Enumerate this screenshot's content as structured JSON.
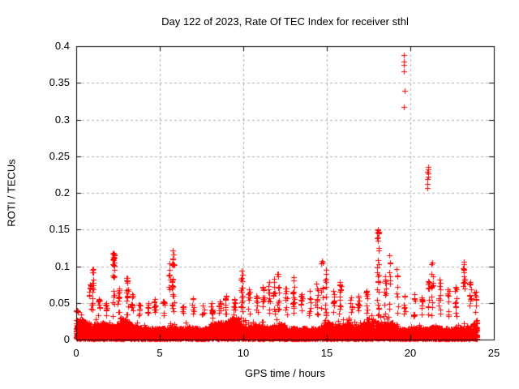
{
  "chart": {
    "title": "Day 122 of 2023, Rate Of TEC Index for receiver sthl",
    "xlabel": "GPS time / hours",
    "ylabel": "ROTI / TECUs"
  },
  "colors": {
    "marker": "#ff0000",
    "grid": "#b0b0b0",
    "axis": "#000000",
    "background": "#ffffff",
    "text": "#000000"
  },
  "chart_data": {
    "type": "scatter",
    "title": "Day 122 of 2023, Rate Of TEC Index for receiver sthl",
    "xlabel": "GPS time / hours",
    "ylabel": "ROTI / TECUs",
    "marker": "plus",
    "marker_size": 7,
    "marker_color": "#ff0000",
    "grid": true,
    "legend": "none",
    "xlim": [
      0,
      25
    ],
    "ylim": [
      0,
      0.4
    ],
    "xticks": [
      0,
      5,
      10,
      15,
      20,
      25
    ],
    "xtick_labels": [
      "0",
      "5",
      "10",
      "15",
      "20",
      "25"
    ],
    "yticks": [
      0,
      0.05,
      0.1,
      0.15,
      0.2,
      0.25,
      0.3,
      0.35,
      0.4
    ],
    "ytick_labels": [
      "0",
      "0.05",
      "0.1",
      "0.15",
      "0.2",
      "0.25",
      "0.3",
      "0.35",
      "0.4"
    ],
    "time_span_hours": [
      0,
      24
    ],
    "max_value_observed": 0.388,
    "seed": 20231220,
    "baseline": {
      "n_dense": 3000,
      "n_scatter": 5500,
      "base_min": 0.0015,
      "env_base": 0.017,
      "env_waves": [
        [
          0.006,
          0.8,
          0.3
        ],
        [
          0.004,
          2.1,
          1.2
        ],
        [
          0.003,
          4.7,
          0.7
        ]
      ],
      "power": 1.7,
      "fuzz_fraction": 0.08,
      "fuzz_gain": 1.35,
      "dense_max": 0.014,
      "dense_power": 1.3
    },
    "spikes": [
      [
        0.05,
        0.04,
        6
      ],
      [
        0.85,
        0.075,
        10
      ],
      [
        1.0,
        0.096,
        14
      ],
      [
        1.35,
        0.055,
        8
      ],
      [
        1.8,
        0.05,
        8
      ],
      [
        2.25,
        0.118,
        26
      ],
      [
        2.55,
        0.07,
        10
      ],
      [
        3.05,
        0.084,
        16
      ],
      [
        3.35,
        0.062,
        8
      ],
      [
        3.8,
        0.048,
        6
      ],
      [
        4.3,
        0.05,
        7
      ],
      [
        4.7,
        0.055,
        8
      ],
      [
        5.25,
        0.052,
        7
      ],
      [
        5.6,
        0.104,
        6
      ],
      [
        5.8,
        0.121,
        24
      ],
      [
        6.4,
        0.045,
        6
      ],
      [
        7.0,
        0.056,
        8
      ],
      [
        7.6,
        0.046,
        6
      ],
      [
        8.1,
        0.05,
        7
      ],
      [
        8.6,
        0.052,
        8
      ],
      [
        8.95,
        0.06,
        9
      ],
      [
        9.45,
        0.055,
        7
      ],
      [
        9.9,
        0.094,
        18
      ],
      [
        10.35,
        0.068,
        9
      ],
      [
        10.8,
        0.06,
        8
      ],
      [
        11.2,
        0.072,
        10
      ],
      [
        11.55,
        0.078,
        10
      ],
      [
        11.85,
        0.083,
        12
      ],
      [
        12.1,
        0.09,
        10
      ],
      [
        12.55,
        0.07,
        9
      ],
      [
        13.0,
        0.085,
        14
      ],
      [
        13.5,
        0.062,
        8
      ],
      [
        14.0,
        0.066,
        8
      ],
      [
        14.4,
        0.076,
        10
      ],
      [
        14.72,
        0.107,
        7
      ],
      [
        14.95,
        0.095,
        12
      ],
      [
        15.4,
        0.066,
        8
      ],
      [
        15.8,
        0.078,
        12
      ],
      [
        16.45,
        0.057,
        7
      ],
      [
        16.9,
        0.06,
        8
      ],
      [
        17.4,
        0.066,
        8
      ],
      [
        18.08,
        0.15,
        30
      ],
      [
        18.5,
        0.086,
        10
      ],
      [
        18.75,
        0.115,
        8
      ],
      [
        19.2,
        0.096,
        7
      ],
      [
        19.65,
        0.06,
        6
      ],
      [
        20.25,
        0.062,
        8
      ],
      [
        20.7,
        0.058,
        8
      ],
      [
        21.1,
        0.08,
        10
      ],
      [
        21.3,
        0.105,
        12
      ],
      [
        21.75,
        0.082,
        10
      ],
      [
        22.25,
        0.068,
        9
      ],
      [
        22.7,
        0.072,
        10
      ],
      [
        23.2,
        0.106,
        14
      ],
      [
        23.6,
        0.078,
        10
      ],
      [
        23.9,
        0.065,
        8
      ]
    ],
    "outliers": [
      [
        19.6,
        0.388
      ],
      [
        19.61,
        0.379
      ],
      [
        19.63,
        0.375
      ],
      [
        19.61,
        0.366
      ],
      [
        19.68,
        0.339
      ],
      [
        19.62,
        0.317
      ],
      [
        21.05,
        0.235
      ],
      [
        21.07,
        0.232
      ],
      [
        21.04,
        0.229
      ],
      [
        21.08,
        0.226
      ],
      [
        21.06,
        0.222
      ],
      [
        21.03,
        0.219
      ],
      [
        21.0,
        0.212
      ],
      [
        21.01,
        0.207
      ]
    ]
  }
}
